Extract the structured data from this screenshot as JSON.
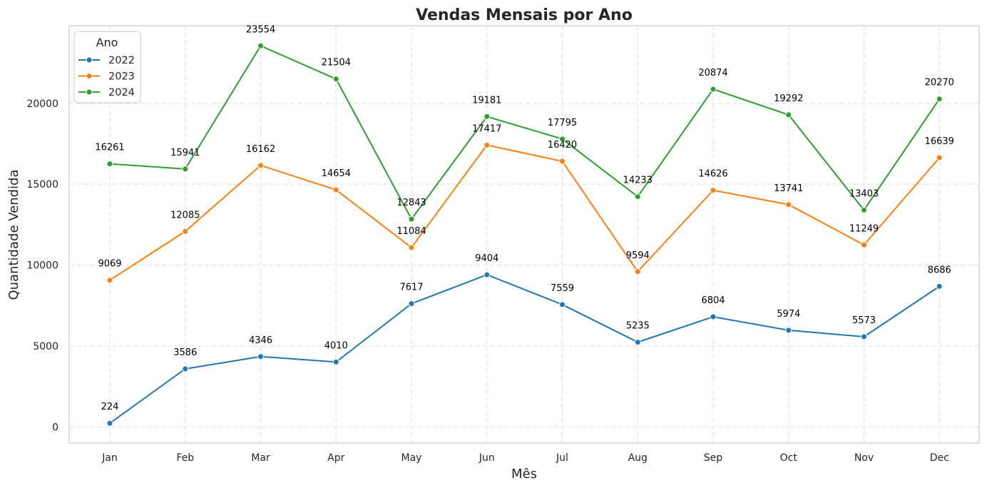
{
  "chart_data": {
    "type": "line",
    "title": "Vendas Mensais por Ano",
    "xlabel": "Mês",
    "ylabel": "Quantidade Vendida",
    "categories": [
      "Jan",
      "Feb",
      "Mar",
      "Apr",
      "May",
      "Jun",
      "Jul",
      "Aug",
      "Sep",
      "Oct",
      "Nov",
      "Dec"
    ],
    "ylim": [
      -1000,
      24800
    ],
    "yticks": [
      0,
      5000,
      10000,
      15000,
      20000
    ],
    "grid": true,
    "legend": {
      "title": "Ano",
      "placement": "top-left"
    },
    "series": [
      {
        "name": "2022",
        "color": "#1f77b4",
        "values": [
          224,
          3586,
          4346,
          4010,
          7617,
          9404,
          7559,
          5235,
          6804,
          5974,
          5573,
          8686
        ]
      },
      {
        "name": "2023",
        "color": "#ff7f0e",
        "values": [
          9069,
          12085,
          16162,
          14654,
          11084,
          17417,
          16420,
          9594,
          14626,
          13741,
          11249,
          16639
        ]
      },
      {
        "name": "2024",
        "color": "#2ca02c",
        "values": [
          16261,
          15941,
          23554,
          21504,
          12843,
          19181,
          17795,
          14233,
          20874,
          19292,
          13403,
          20270
        ]
      }
    ]
  }
}
